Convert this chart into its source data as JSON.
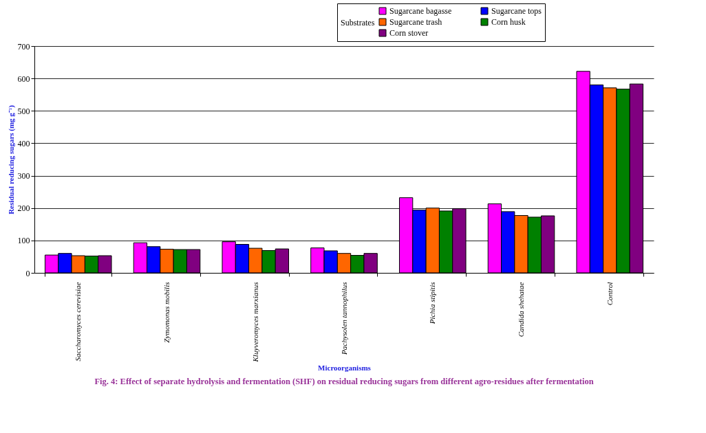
{
  "chart_data": {
    "type": "bar",
    "title": "Fig. 4: Effect of separate hydrolysis and fermentation (SHF) on residual reducing sugars from different agro-residues after fermentation",
    "xlabel": "Microorganisms",
    "ylabel": "Residual reducing sugars (mg g⁻¹)",
    "legend_title": "Substrates",
    "categories": [
      "Saccharomyces cerevisiae",
      "Zymomonas mobilis",
      "Kluyveromyces marxianus",
      "Pachysolen tannophilus",
      "Pichia stipitis",
      "Candida shehatae",
      "Control"
    ],
    "series": [
      {
        "name": "Sugarcane bagasse",
        "color": "#ff00ff",
        "values": [
          55,
          93,
          96,
          77,
          232,
          213,
          622
        ]
      },
      {
        "name": "Sugarcane tops",
        "color": "#0000ff",
        "values": [
          60,
          81,
          88,
          68,
          194,
          189,
          580
        ]
      },
      {
        "name": "Sugarcane trash",
        "color": "#ff6600",
        "values": [
          53,
          73,
          76,
          60,
          200,
          177,
          571
        ]
      },
      {
        "name": "Corn husk",
        "color": "#008000",
        "values": [
          52,
          72,
          69,
          54,
          191,
          172,
          567
        ]
      },
      {
        "name": "Corn stover",
        "color": "#800080",
        "values": [
          53,
          72,
          74,
          60,
          198,
          176,
          583
        ]
      }
    ],
    "ylim": [
      0,
      700
    ],
    "yticks": [
      0,
      100,
      200,
      300,
      400,
      500,
      600,
      700
    ],
    "grid": "y",
    "legend": "top right"
  }
}
